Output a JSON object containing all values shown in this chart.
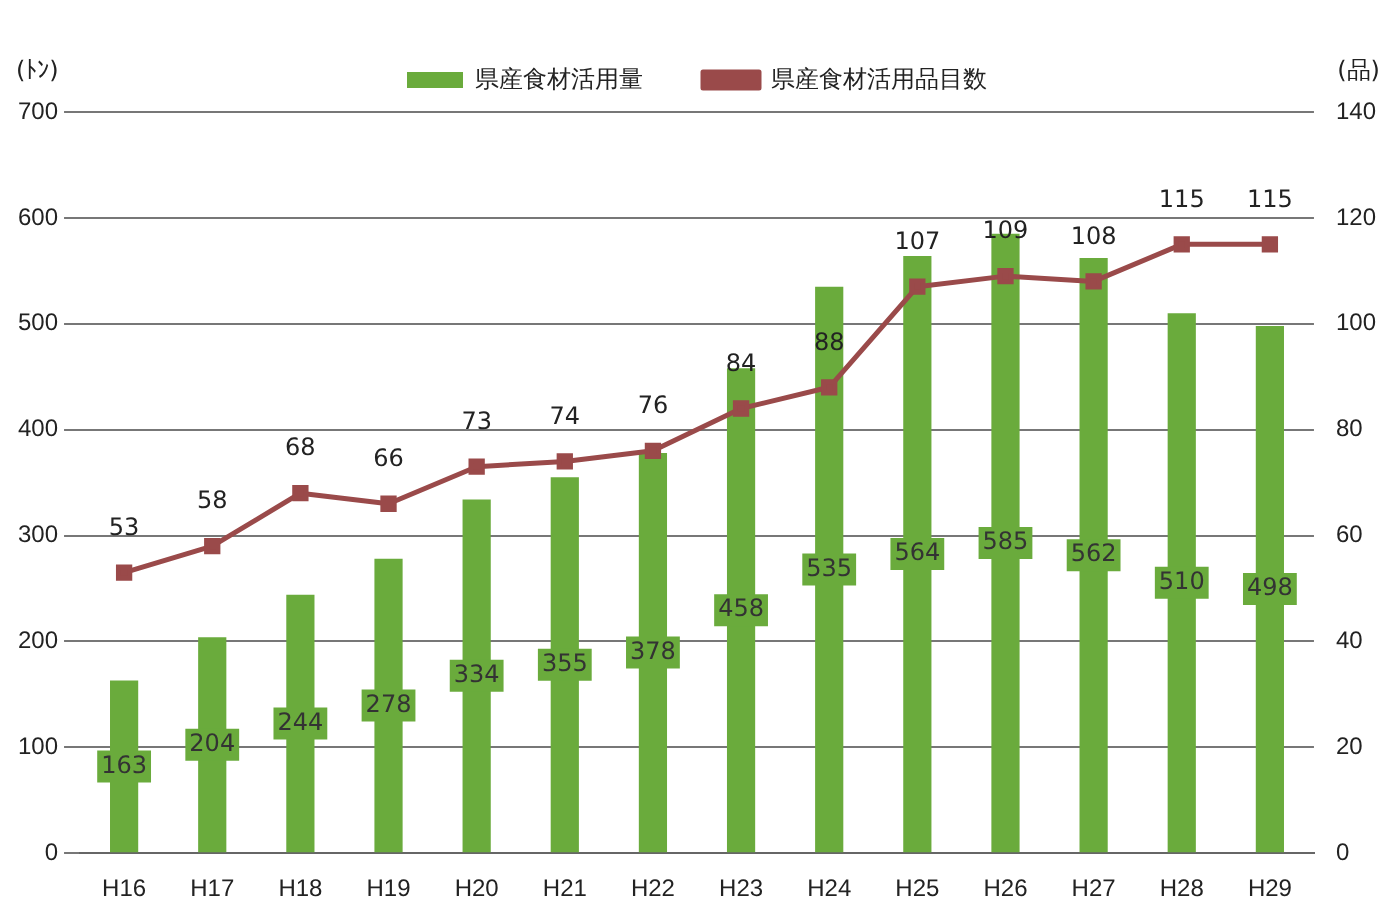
{
  "chart_data": {
    "type": "bar",
    "categories": [
      "H16",
      "H17",
      "H18",
      "H19",
      "H20",
      "H21",
      "H22",
      "H23",
      "H24",
      "H25",
      "H26",
      "H27",
      "H28",
      "H29"
    ],
    "ylabel": "(ﾄﾝ)",
    "y2label": "(品)",
    "series": [
      {
        "name": "県産食材活用量",
        "color": "#6aab3c",
        "values": [
          163,
          204,
          244,
          278,
          334,
          355,
          378,
          458,
          535,
          564,
          585,
          562,
          510,
          498
        ]
      },
      {
        "name": "県産食材活用品目数",
        "type": "line",
        "axis": "y2",
        "color": "#9a4a4a",
        "marker": "square",
        "values": [
          53,
          58,
          68,
          66,
          73,
          74,
          76,
          84,
          88,
          107,
          109,
          108,
          115,
          115
        ]
      }
    ],
    "ylim": [
      0,
      700
    ],
    "yticks": [
      0,
      100,
      200,
      300,
      400,
      500,
      600,
      700
    ],
    "y2lim": [
      0,
      140
    ],
    "y2ticks": [
      0,
      20,
      40,
      60,
      80,
      100,
      120,
      140
    ],
    "grid": "y",
    "legend": "top",
    "data_labels": true
  }
}
